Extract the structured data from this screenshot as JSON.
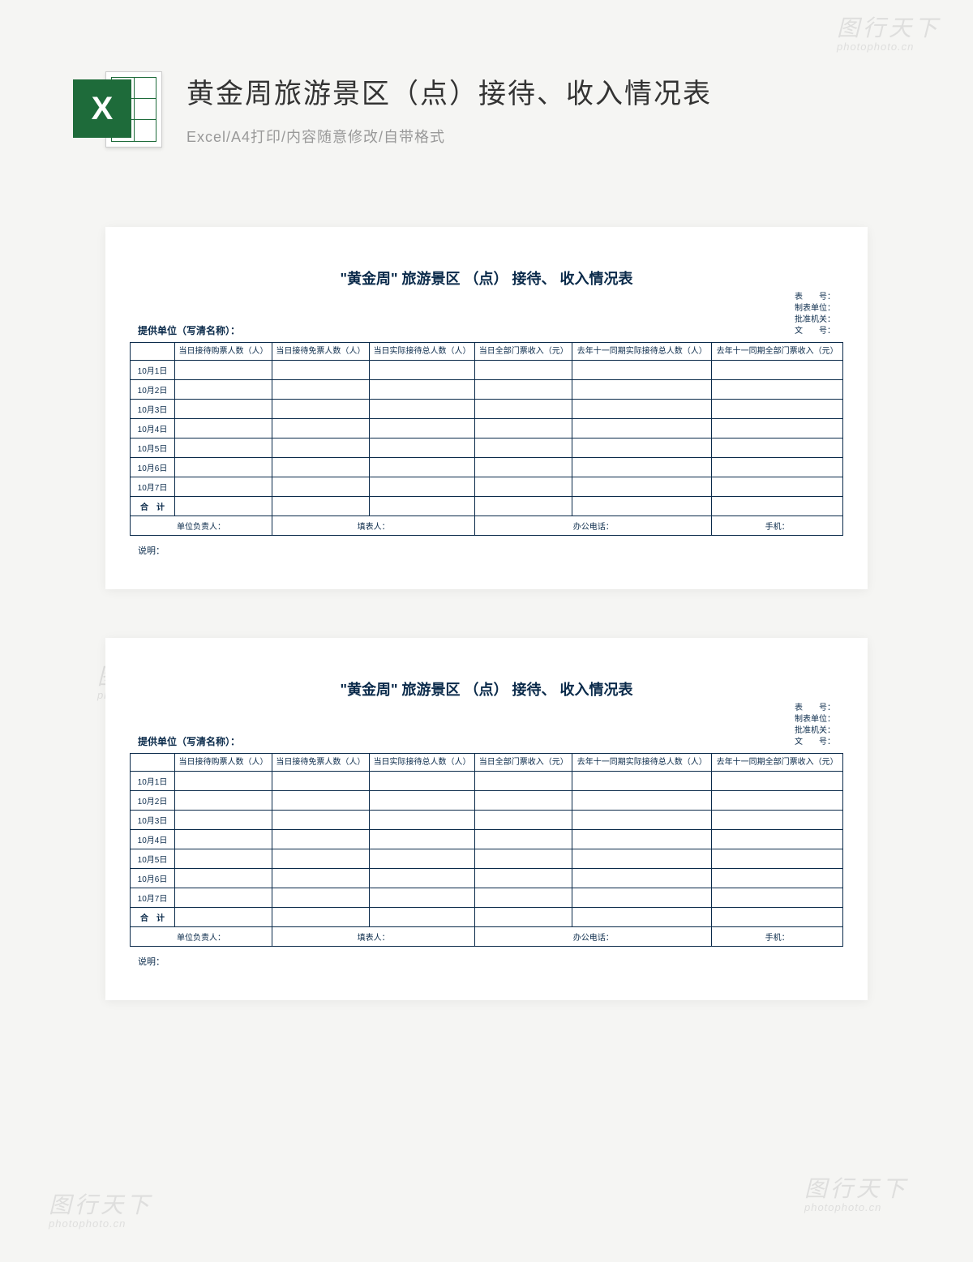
{
  "header": {
    "title": "黄金周旅游景区（点）接待、收入情况表",
    "subtitle": "Excel/A4打印/内容随意修改/自带格式",
    "icon_letter": "X"
  },
  "watermark": {
    "cn": "图行天下",
    "en": "photophoto.cn"
  },
  "form": {
    "title": "\"黄金周\" 旅游景区 （点） 接待、 收入情况表",
    "provider_label": "提供单位（写清名称）：",
    "meta_lines": [
      "表　　号：",
      "制表单位：",
      "批准机关：",
      "文　　号："
    ],
    "columns": [
      "",
      "当日接待购票人数（人）",
      "当日接待免票人数（人）",
      "当日实际接待总人数（人）",
      "当日全部门票收入（元）",
      "去年十一同期实际接待总人数（人）",
      "去年十一同期全部门票收入（元）"
    ],
    "rows": [
      "10月1日",
      "10月2日",
      "10月3日",
      "10月4日",
      "10月5日",
      "10月6日",
      "10月7日",
      "合　计"
    ],
    "footer_labels": [
      "单位负责人：",
      "填表人：",
      "办公电话：",
      "手机："
    ],
    "note_label": "说明："
  },
  "colors": {
    "page_bg": "#f5f5f3",
    "excel_green": "#1e6b3a",
    "title_text": "#333333",
    "subtitle_text": "#999999",
    "form_text": "#0a2a4a",
    "border": "#0a2a4a",
    "sheet_bg": "#ffffff"
  }
}
